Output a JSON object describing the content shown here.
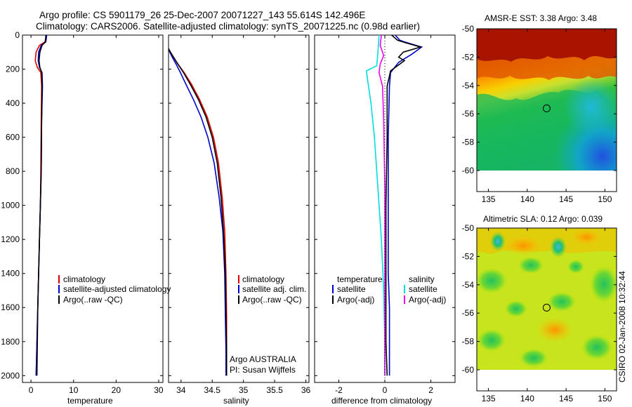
{
  "header": {
    "line1": "Argo profile: CS 5901179_26 25-Dec-2007 20071227_143 55.614S 142.496E",
    "line2": "Climatology: CARS2006. Satellite-adjusted climatology: synTS_20071225.nc (0.98d earlier)"
  },
  "colors": {
    "climatology": "#dd0000",
    "satellite": "#0000cc",
    "argo": "#000000",
    "salinity_satellite": "#00dddd",
    "salinity_argo": "#ee00ee"
  },
  "chart_data": [
    {
      "id": "temperature",
      "type": "line",
      "xlabel": "temperature",
      "ylabel": "",
      "xlim": [
        -2,
        31
      ],
      "ylim": [
        2040,
        0
      ],
      "xticks": [
        0,
        10,
        20,
        30
      ],
      "yticks": [
        0,
        200,
        400,
        600,
        800,
        1000,
        1200,
        1400,
        1600,
        1800,
        2000
      ],
      "legend": [
        "climatology",
        "satellite-adjusted climatology",
        "Argo(..raw -QC)"
      ],
      "series": [
        {
          "name": "climatology",
          "color": "#dd0000",
          "x": [
            3.6,
            3.3,
            2.0,
            1.2,
            1.0,
            1.5,
            2.3,
            2.5,
            2.4,
            2.3,
            2.2,
            2.0,
            1.8,
            1.6,
            1.4,
            1.2
          ],
          "y": [
            0,
            40,
            60,
            100,
            150,
            190,
            220,
            300,
            500,
            800,
            1000,
            1200,
            1400,
            1600,
            1800,
            2000
          ]
        },
        {
          "name": "satellite-adjusted climatology",
          "color": "#0000cc",
          "x": [
            3.7,
            3.5,
            2.4,
            1.8,
            1.7,
            2.0,
            2.6,
            2.7,
            2.5,
            2.4,
            2.2,
            2.0,
            1.8,
            1.6,
            1.4,
            1.2
          ],
          "y": [
            0,
            40,
            60,
            100,
            150,
            190,
            220,
            300,
            500,
            800,
            1000,
            1200,
            1400,
            1600,
            1800,
            2000
          ]
        },
        {
          "name": "Argo(..raw -QC)",
          "color": "#000000",
          "x": [
            3.5,
            3.4,
            2.6,
            2.1,
            1.9,
            2.1,
            2.5,
            2.6,
            2.5,
            2.4,
            2.2,
            2.0,
            1.8,
            1.6,
            1.5,
            1.4
          ],
          "y": [
            0,
            40,
            60,
            100,
            150,
            190,
            220,
            300,
            500,
            800,
            1000,
            1200,
            1400,
            1600,
            1800,
            2000
          ]
        }
      ]
    },
    {
      "id": "salinity",
      "type": "line",
      "xlabel": "salinity",
      "ylabel": "",
      "xlim": [
        33.8,
        36.05
      ],
      "ylim": [
        2040,
        0
      ],
      "xticks": [
        34,
        34.5,
        35,
        35.5,
        36
      ],
      "xticklabels": [
        "34",
        "34.5",
        "35",
        "35.5",
        "36"
      ],
      "legend": [
        "climatology",
        "satellite adj. clim.",
        "Argo(..raw -QC)"
      ],
      "annotation": [
        "Argo AUSTRALIA",
        "PI: Susan Wijffels"
      ],
      "series": [
        {
          "name": "climatology",
          "color": "#dd0000",
          "x": [
            33.8,
            33.83,
            33.88,
            33.95,
            34.05,
            34.17,
            34.3,
            34.42,
            34.52,
            34.6,
            34.66,
            34.7,
            34.72,
            34.73,
            34.73,
            34.73
          ],
          "y": [
            80,
            100,
            130,
            170,
            220,
            290,
            380,
            480,
            600,
            750,
            950,
            1150,
            1400,
            1650,
            1850,
            2000
          ]
        },
        {
          "name": "satellite adj. clim.",
          "color": "#0000cc",
          "x": [
            33.8,
            33.82,
            33.86,
            33.92,
            33.99,
            34.08,
            34.2,
            34.32,
            34.43,
            34.53,
            34.61,
            34.67,
            34.7,
            34.71,
            34.72,
            34.72
          ],
          "y": [
            80,
            100,
            130,
            170,
            220,
            290,
            380,
            480,
            600,
            750,
            950,
            1150,
            1400,
            1650,
            1850,
            2000
          ]
        },
        {
          "name": "Argo(..raw -QC)",
          "color": "#000000",
          "x": [
            33.8,
            33.83,
            33.88,
            33.95,
            34.04,
            34.15,
            34.28,
            34.4,
            34.5,
            34.58,
            34.64,
            34.68,
            34.71,
            34.72,
            34.73,
            34.73
          ],
          "y": [
            80,
            100,
            130,
            170,
            220,
            290,
            380,
            480,
            600,
            750,
            950,
            1150,
            1400,
            1650,
            1850,
            2000
          ]
        }
      ]
    },
    {
      "id": "difference",
      "type": "line",
      "xlabel": "difference from climatology",
      "ylabel": "",
      "xlim": [
        -3.05,
        3.05
      ],
      "ylim": [
        2040,
        0
      ],
      "xticks": [
        -2,
        0,
        2
      ],
      "legend_left_title": "temperature",
      "legend_right_title": "salinity",
      "legend_left": [
        "satellite",
        "Argo(-adj)"
      ],
      "legend_right": [
        "satellite",
        "Argo(-adj)"
      ],
      "series": [
        {
          "name": "temperature satellite",
          "color": "#0000cc",
          "x": [
            0.45,
            0.65,
            0.85,
            1.35,
            1.6,
            1.2,
            0.6,
            0.25,
            0.2,
            0.15,
            0.15,
            0.15,
            0.2,
            0.2,
            0.2
          ],
          "y": [
            0,
            30,
            40,
            60,
            70,
            110,
            160,
            220,
            300,
            600,
            1000,
            1400,
            1600,
            1800,
            2000
          ]
        },
        {
          "name": "temperature Argo(-adj)",
          "color": "#000000",
          "x": [
            0.3,
            0.55,
            0.9,
            1.55,
            0.8,
            0.6,
            0.85,
            0.25,
            0.1,
            0.1,
            0.05,
            0.05,
            0.05,
            0.05,
            0.1
          ],
          "y": [
            0,
            30,
            45,
            70,
            100,
            130,
            150,
            210,
            300,
            600,
            1000,
            1400,
            1600,
            1800,
            2000
          ]
        },
        {
          "name": "salinity satellite",
          "color": "#00dddd",
          "x": [
            -0.25,
            -0.3,
            -0.35,
            -0.8,
            -0.75,
            -0.6,
            -0.45,
            -0.3,
            -0.15,
            -0.05,
            0.0,
            0.0
          ],
          "y": [
            0,
            100,
            180,
            210,
            260,
            400,
            600,
            900,
            1200,
            1500,
            1800,
            2000
          ]
        },
        {
          "name": "salinity Argo(-adj)",
          "color": "#ee00ee",
          "x": [
            -0.15,
            -0.2,
            -0.05,
            -0.2,
            -0.25,
            -0.1,
            -0.05,
            0.0,
            0.0,
            0.0
          ],
          "y": [
            0,
            60,
            120,
            170,
            220,
            300,
            500,
            900,
            1500,
            2000
          ]
        }
      ]
    },
    {
      "id": "sst_map",
      "type": "heatmap",
      "title": "AMSR-E SST: 3.38 Argo: 3.48",
      "xlim": [
        133.5,
        151.5
      ],
      "ylim": [
        -61.5,
        -49.5
      ],
      "data_lat_range": [
        -60,
        -50
      ],
      "xticks": [
        135,
        140,
        145,
        150
      ],
      "yticks": [
        -50,
        -52,
        -54,
        -56,
        -58,
        -60
      ],
      "marker": {
        "lon": 142.496,
        "lat": -55.614
      }
    },
    {
      "id": "sla_map",
      "type": "heatmap",
      "title": "Altimetric SLA: 0.12 Argo: 0.039",
      "xlim": [
        133.5,
        151.5
      ],
      "ylim": [
        -61.5,
        -49.5
      ],
      "data_lat_range": [
        -60,
        -50
      ],
      "xticks": [
        135,
        140,
        145,
        150
      ],
      "yticks": [
        -50,
        -52,
        -54,
        -56,
        -58,
        -60
      ],
      "marker": {
        "lon": 142.496,
        "lat": -55.614
      }
    }
  ],
  "footer": {
    "stamp": "CSIRO 02-Jan-2008 10:32:44"
  }
}
